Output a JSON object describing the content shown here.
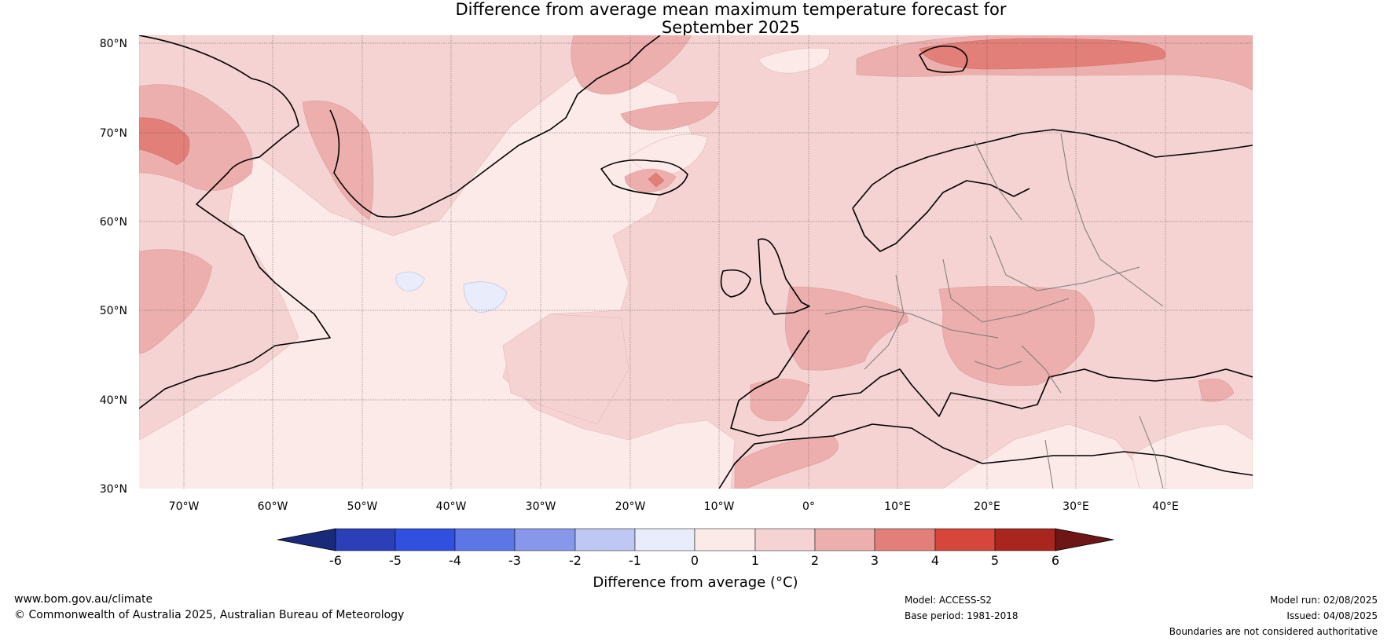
{
  "title_line1": "Difference from average mean maximum temperature forecast for",
  "title_line2": "September 2025",
  "latitude_labels": [
    "80°N",
    "70°N",
    "60°N",
    "50°N",
    "40°N",
    "30°N"
  ],
  "longitude_labels": [
    "70°W",
    "60°W",
    "50°W",
    "40°W",
    "30°W",
    "20°W",
    "10°W",
    "0°",
    "10°E",
    "20°E",
    "30°E",
    "40°E"
  ],
  "colorbar": {
    "label": "Difference from average (°C)",
    "ticks": [
      "-6",
      "-5",
      "-4",
      "-3",
      "-2",
      "-1",
      "0",
      "1",
      "2",
      "3",
      "4",
      "5",
      "6"
    ],
    "colors": [
      "#1a2a7a",
      "#2a3fb8",
      "#3050e0",
      "#5c76e6",
      "#8798ea",
      "#bfc8f2",
      "#e8ecfb",
      "#fbeae8",
      "#f5d3d2",
      "#edafad",
      "#e27f78",
      "#d6463a",
      "#a8261e",
      "#6e1616"
    ]
  },
  "footer": {
    "website": "www.bom.gov.au/climate",
    "copyright": "© Commonwealth of Australia 2025, Australian Bureau of Meteorology",
    "model": "Model: ACCESS-S2",
    "base_period": "Base period: 1981-2018",
    "model_run": "Model run: 02/08/2025",
    "issued": "Issued: 04/08/2025",
    "disclaimer": "Boundaries are not considered authoritative"
  }
}
